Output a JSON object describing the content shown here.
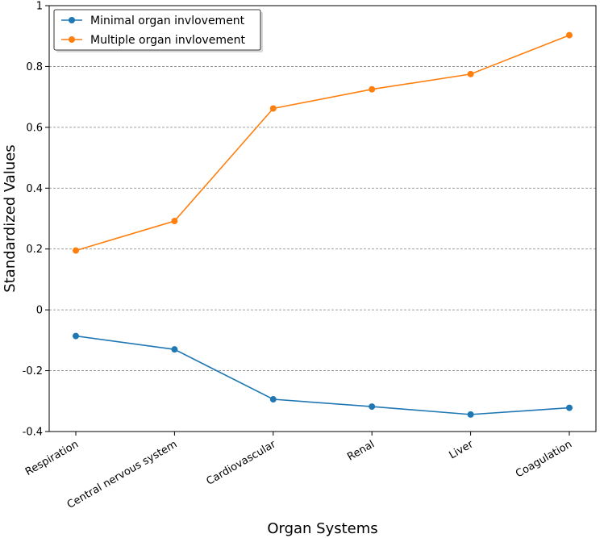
{
  "chart_data": {
    "type": "line",
    "title": "",
    "xlabel": "Organ Systems",
    "ylabel": "Standardized Values",
    "categories": [
      "Respiration",
      "Central nervous system",
      "Cardiovascular",
      "Renal",
      "Liver",
      "Coagulation"
    ],
    "series": [
      {
        "name": "Minimal organ invlovement",
        "color": "#1f77b4",
        "values": [
          -0.086,
          -0.13,
          -0.294,
          -0.318,
          -0.344,
          -0.322
        ]
      },
      {
        "name": "Multiple organ invlovement",
        "color": "#ff7f0e",
        "values": [
          0.195,
          0.292,
          0.662,
          0.725,
          0.775,
          0.903
        ]
      }
    ],
    "ylim": [
      -0.4,
      1.0
    ],
    "yticks": [
      -0.4,
      -0.2,
      0,
      0.2,
      0.4,
      0.6,
      0.8,
      1
    ],
    "ytick_labels": [
      "-0.4",
      "-0.2",
      "0",
      "0.2",
      "0.4",
      "0.6",
      "0.8",
      "1"
    ],
    "grid": "horizontal-dashed",
    "legend_position": "top-left",
    "gridline_color": "#808080"
  }
}
